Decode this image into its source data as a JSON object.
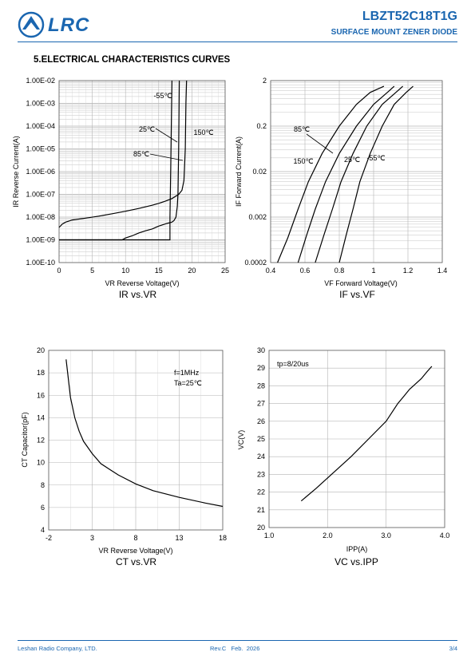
{
  "header": {
    "logo_text": "LRC",
    "part_number": "LBZT52C18T1G",
    "subtitle": "SURFACE MOUNT ZENER DIODE"
  },
  "section_title": "5.ELECTRICAL CHARACTERISTICS CURVES",
  "chart_data": [
    {
      "type": "line",
      "caption": "IR vs.VR",
      "xlabel": "VR Reverse Voltage(V)",
      "ylabel": "IR Reverse Current(A)",
      "xlim": [
        0,
        25
      ],
      "ylim_log10": [
        -10,
        -2
      ],
      "x_ticks": [
        "0",
        "5",
        "10",
        "15",
        "20",
        "25"
      ],
      "y_ticks": [
        "1.00E-02",
        "1.00E-03",
        "1.00E-04",
        "1.00E-05",
        "1.00E-06",
        "1.00E-07",
        "1.00E-08",
        "1.00E-09",
        "1.00E-10"
      ],
      "grid": true,
      "series": [
        {
          "name": "-55°C",
          "x": [
            0,
            16.7,
            16.7,
            16.8,
            16.9,
            17.0
          ],
          "y": [
            1e-09,
            1e-09,
            1e-08,
            1e-06,
            0.0001,
            0.01
          ]
        },
        {
          "name": "25°C",
          "x": [
            0,
            9.5,
            10,
            11,
            12,
            13,
            14,
            15,
            16,
            17,
            17.3,
            17.6,
            17.8,
            17.9,
            18.0,
            18.1
          ],
          "y": [
            1e-09,
            1e-09,
            1.2e-09,
            1.5e-09,
            2e-09,
            2.5e-09,
            3e-09,
            4e-09,
            5e-09,
            6e-09,
            7e-09,
            1e-08,
            3e-08,
            1e-07,
            1e-05,
            0.01
          ]
        },
        {
          "name": "150°C",
          "x": [
            0,
            0.5,
            1,
            2,
            4,
            6,
            8,
            10,
            12,
            14,
            15,
            16,
            17,
            18,
            18.5,
            18.8,
            19.0,
            19.1,
            19.2
          ],
          "y": [
            3.5e-09,
            5e-09,
            6e-09,
            7.5e-09,
            9e-09,
            1.1e-08,
            1.4e-08,
            1.8e-08,
            2.4e-08,
            3.3e-08,
            4e-08,
            5e-08,
            6.5e-08,
            1e-07,
            1.5e-07,
            4e-07,
            1e-05,
            0.001,
            0.01
          ]
        }
      ],
      "annotations": [
        "-55℃",
        "25℃",
        "150℃",
        "85℃"
      ]
    },
    {
      "type": "line",
      "caption": "IF vs.VF",
      "xlabel": "VF Forward Voltage(V)",
      "ylabel": "IF Forward Current(A)",
      "xlim": [
        0.4,
        1.4
      ],
      "ylim_log10": [
        -3.699,
        0.301
      ],
      "x_ticks": [
        "0.4",
        "0.6",
        "0.8",
        "1",
        "1.2",
        "1.4"
      ],
      "y_ticks": [
        "2",
        "0.2",
        "0.02",
        "0.002",
        "0.0002"
      ],
      "grid": true,
      "series": [
        {
          "name": "150°C",
          "x": [
            0.44,
            0.5,
            0.56,
            0.62,
            0.7,
            0.8,
            0.9,
            0.98,
            1.06
          ],
          "y": [
            0.0002,
            0.0007,
            0.003,
            0.012,
            0.05,
            0.2,
            0.6,
            1.1,
            1.5
          ]
        },
        {
          "name": "85°C",
          "x": [
            0.56,
            0.61,
            0.66,
            0.72,
            0.8,
            0.9,
            1.0,
            1.08,
            1.12
          ],
          "y": [
            0.0002,
            0.0008,
            0.003,
            0.012,
            0.05,
            0.2,
            0.6,
            1.1,
            1.5
          ]
        },
        {
          "name": "25°C",
          "x": [
            0.66,
            0.71,
            0.76,
            0.81,
            0.88,
            0.96,
            1.05,
            1.13,
            1.17
          ],
          "y": [
            0.0002,
            0.0008,
            0.003,
            0.012,
            0.05,
            0.2,
            0.6,
            1.1,
            1.5
          ]
        },
        {
          "name": "-55°C",
          "x": [
            0.8,
            0.84,
            0.88,
            0.92,
            0.98,
            1.05,
            1.12,
            1.19,
            1.23
          ],
          "y": [
            0.0002,
            0.0008,
            0.003,
            0.012,
            0.05,
            0.2,
            0.6,
            1.1,
            1.5
          ]
        }
      ],
      "annotations": [
        "85℃",
        "150℃",
        "25℃",
        "-55℃"
      ]
    },
    {
      "type": "line",
      "caption": "CT vs.VR",
      "xlabel": "VR Reverse Voltage(V)",
      "ylabel": "CT Capacitor(pF)",
      "xlim": [
        -2,
        18
      ],
      "ylim": [
        4,
        20
      ],
      "x_ticks": [
        "-2",
        "3",
        "8",
        "13",
        "18"
      ],
      "y_ticks": [
        "20",
        "18",
        "16",
        "14",
        "12",
        "10",
        "8",
        "6",
        "4"
      ],
      "grid": true,
      "series": [
        {
          "name": "",
          "x": [
            0,
            0.5,
            1,
            1.5,
            2,
            3,
            4,
            5,
            6,
            8,
            10,
            13,
            16,
            18
          ],
          "y": [
            19.2,
            15.8,
            14.0,
            12.8,
            11.9,
            10.8,
            9.9,
            9.4,
            8.9,
            8.1,
            7.5,
            6.9,
            6.4,
            6.1
          ]
        }
      ],
      "annotations": [
        "f=1MHz",
        "Ta=25℃"
      ]
    },
    {
      "type": "line",
      "caption": "VC vs.IPP",
      "xlabel": "IPP(A)",
      "ylabel": "VC(V)",
      "xlim": [
        1.0,
        4.0
      ],
      "ylim": [
        20,
        30
      ],
      "x_ticks": [
        "1.0",
        "2.0",
        "3.0",
        "4.0"
      ],
      "y_ticks": [
        "30",
        "29",
        "28",
        "27",
        "26",
        "25",
        "24",
        "23",
        "22",
        "21",
        "20"
      ],
      "grid": true,
      "series": [
        {
          "name": "",
          "x": [
            1.55,
            1.8,
            2.1,
            2.4,
            2.7,
            3.0,
            3.1,
            3.2,
            3.3,
            3.4,
            3.5,
            3.6,
            3.7,
            3.78
          ],
          "y": [
            21.5,
            22.2,
            23.1,
            24.0,
            25.0,
            26.0,
            26.5,
            27.0,
            27.4,
            27.8,
            28.1,
            28.4,
            28.8,
            29.1
          ]
        }
      ],
      "annotations": [
        "tp=8/20us"
      ]
    }
  ],
  "footer": {
    "company": "Leshan Radio Company, LTD.",
    "revision": "Rev.C   Feb.  2026",
    "page": "3/4"
  },
  "colors": {
    "brand": "#1a66b0",
    "grid": "#b4b4b4",
    "background": "#ffffff"
  }
}
